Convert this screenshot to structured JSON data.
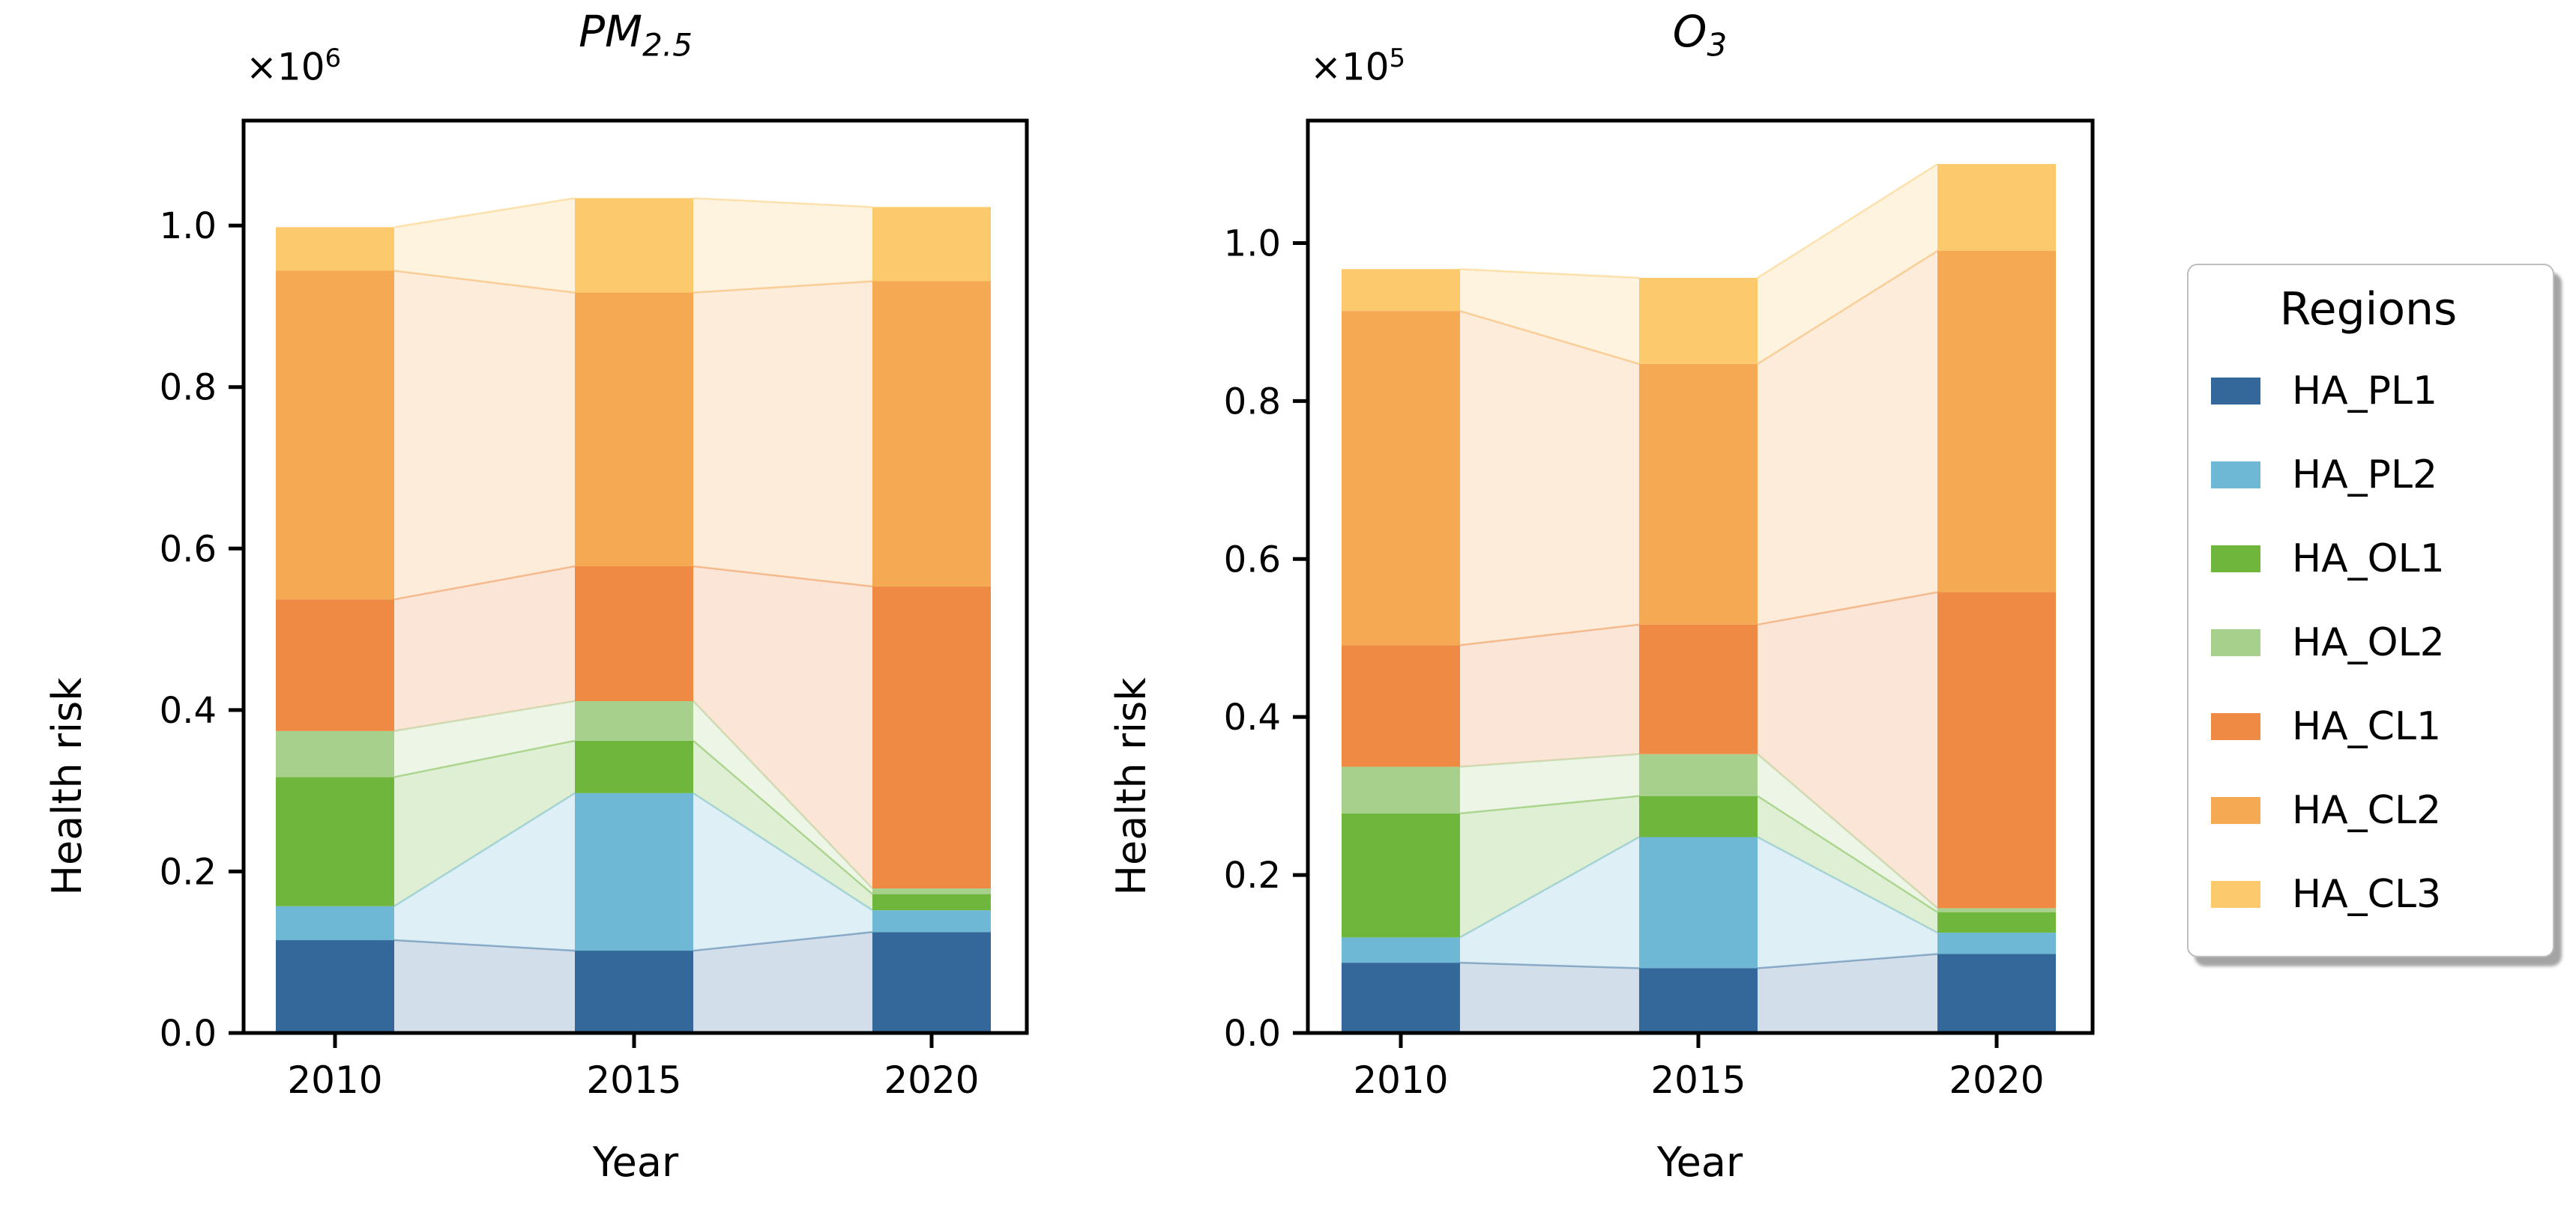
{
  "figure": {
    "background": "#ffffff",
    "ylabel": "Health risk",
    "xlabel": "Year"
  },
  "legend": {
    "title": "Regions",
    "items": [
      {
        "label": "HA_PL1",
        "color": "#34689A"
      },
      {
        "label": "HA_PL2",
        "color": "#6EB8D6"
      },
      {
        "label": "HA_OL1",
        "color": "#6FB73C"
      },
      {
        "label": "HA_OL2",
        "color": "#A8D08D"
      },
      {
        "label": "HA_CL1",
        "color": "#EE8A43"
      },
      {
        "label": "HA_CL2",
        "color": "#F5A952"
      },
      {
        "label": "HA_CL3",
        "color": "#FCCA6C"
      }
    ]
  },
  "titles": {
    "left_base": "PM",
    "left_sub": "2.5",
    "right_base": "O",
    "right_sub": "3",
    "left_offset_base": "×10",
    "left_offset_exp": "6",
    "right_offset_base": "×10",
    "right_offset_exp": "5",
    "left_ylabel": "Health risk",
    "right_ylabel": "Health risk",
    "left_xlabel": "Year",
    "right_xlabel": "Year"
  },
  "chart_data": [
    {
      "type": "bar",
      "stacked": true,
      "title": "PM2.5",
      "xlabel": "Year",
      "ylabel": "Health risk",
      "offset_label": "×10⁶",
      "unit_multiplier": 1000000,
      "categories": [
        "2010",
        "2015",
        "2020"
      ],
      "ytick_labels": [
        "0.0",
        "0.2",
        "0.4",
        "0.6",
        "0.8",
        "1.0"
      ],
      "yticks": [
        0.0,
        0.2,
        0.4,
        0.6,
        0.8,
        1.0
      ],
      "ylim": [
        0,
        1.13
      ],
      "grid": false,
      "legend_position": "outside-right",
      "connector_band_alpha": 0.22,
      "series": [
        {
          "name": "HA_PL1",
          "color": "#34689A",
          "values": [
            0.115,
            0.102,
            0.125
          ]
        },
        {
          "name": "HA_PL2",
          "color": "#6EB8D6",
          "values": [
            0.042,
            0.195,
            0.027
          ]
        },
        {
          "name": "HA_OL1",
          "color": "#6FB73C",
          "values": [
            0.16,
            0.065,
            0.02
          ]
        },
        {
          "name": "HA_OL2",
          "color": "#A8D08D",
          "values": [
            0.057,
            0.049,
            0.007
          ]
        },
        {
          "name": "HA_CL1",
          "color": "#EE8A43",
          "values": [
            0.163,
            0.167,
            0.374
          ]
        },
        {
          "name": "HA_CL2",
          "color": "#F5A952",
          "values": [
            0.407,
            0.339,
            0.378
          ]
        },
        {
          "name": "HA_CL3",
          "color": "#FCCA6C",
          "values": [
            0.054,
            0.117,
            0.092
          ]
        }
      ],
      "stack_totals": [
        0.998,
        1.034,
        1.023
      ]
    },
    {
      "type": "bar",
      "stacked": true,
      "title": "O3",
      "xlabel": "Year",
      "ylabel": "Health risk",
      "offset_label": "×10⁵",
      "unit_multiplier": 100000,
      "categories": [
        "2010",
        "2015",
        "2020"
      ],
      "ytick_labels": [
        "0.0",
        "0.2",
        "0.4",
        "0.6",
        "0.8",
        "1.0"
      ],
      "yticks": [
        0.0,
        0.2,
        0.4,
        0.6,
        0.8,
        1.0
      ],
      "ylim": [
        0,
        1.155
      ],
      "grid": false,
      "legend_position": "outside-right",
      "connector_band_alpha": 0.22,
      "series": [
        {
          "name": "HA_PL1",
          "color": "#34689A",
          "values": [
            0.089,
            0.082,
            0.1
          ]
        },
        {
          "name": "HA_PL2",
          "color": "#6EB8D6",
          "values": [
            0.032,
            0.166,
            0.027
          ]
        },
        {
          "name": "HA_OL1",
          "color": "#6FB73C",
          "values": [
            0.157,
            0.052,
            0.026
          ]
        },
        {
          "name": "HA_OL2",
          "color": "#A8D08D",
          "values": [
            0.059,
            0.053,
            0.005
          ]
        },
        {
          "name": "HA_CL1",
          "color": "#EE8A43",
          "values": [
            0.154,
            0.164,
            0.4
          ]
        },
        {
          "name": "HA_CL2",
          "color": "#F5A952",
          "values": [
            0.423,
            0.33,
            0.432
          ]
        },
        {
          "name": "HA_CL3",
          "color": "#FCCA6C",
          "values": [
            0.053,
            0.109,
            0.11
          ]
        }
      ],
      "stack_totals": [
        0.967,
        0.956,
        1.1
      ]
    }
  ]
}
